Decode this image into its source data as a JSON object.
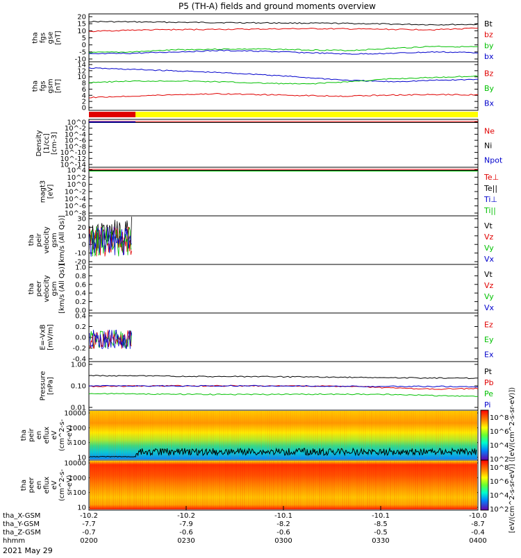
{
  "chart_data": {
    "title": "P5 (TH-A) fields and ground moments overview",
    "date": "2021 May 29",
    "panels": [
      {
        "id": "fgs_gse",
        "type": "line",
        "ylabel": [
          "tha",
          "fgs",
          "gse",
          "[nT]"
        ],
        "yticks": [
          "20",
          "15",
          "10",
          "5",
          "0",
          "-5",
          "-10"
        ],
        "ylim": [
          -10,
          20
        ],
        "legend": [
          {
            "label": "Bt",
            "color": "#000000"
          },
          {
            "label": "bz",
            "color": "#e00000"
          },
          {
            "label": "by",
            "color": "#00c000"
          },
          {
            "label": "bx",
            "color": "#0000cc"
          }
        ],
        "series": [
          {
            "name": "Bt",
            "color": "#000000",
            "values": [
              16.5,
              16.3,
              16.0,
              15.8,
              15.6,
              15.4,
              15.2,
              14.7,
              14.3,
              14.5
            ]
          },
          {
            "name": "bz",
            "color": "#e00000",
            "values": [
              9.5,
              10.5,
              10.8,
              11.0,
              11.2,
              11.5,
              11.3,
              11.0,
              10.8,
              11.8
            ]
          },
          {
            "name": "by",
            "color": "#00c000",
            "values": [
              -5.5,
              -5.0,
              -3.5,
              -3.0,
              -3.0,
              -3.5,
              -4.0,
              -2.5,
              -1.0,
              -1.5
            ]
          },
          {
            "name": "bx",
            "color": "#0000cc",
            "values": [
              -6.5,
              -6.0,
              -5.0,
              -4.0,
              -4.5,
              -5.5,
              -6.5,
              -6.0,
              -5.0,
              -5.5
            ]
          }
        ]
      },
      {
        "id": "fgs_gsm",
        "type": "line",
        "ylabel": [
          "tha",
          "fgs",
          "gsm",
          "[nT]"
        ],
        "yticks": [
          "14",
          "12",
          "10",
          "8",
          "6",
          "4",
          "2",
          "0"
        ],
        "ylim": [
          -1,
          14
        ],
        "legend": [
          {
            "label": "Bz",
            "color": "#e00000"
          },
          {
            "label": "By",
            "color": "#00c000"
          },
          {
            "label": "Bx",
            "color": "#0000cc"
          }
        ],
        "series": [
          {
            "name": "Bx",
            "color": "#0000cc",
            "values": [
              12.8,
              12.3,
              11.8,
              11.2,
              10.5,
              9.5,
              8.5,
              8.0,
              8.5,
              8.8
            ]
          },
          {
            "name": "By",
            "color": "#00c000",
            "values": [
              7.8,
              8.2,
              8.3,
              8.0,
              7.5,
              7.2,
              8.0,
              9.0,
              9.5,
              10.0
            ]
          },
          {
            "name": "Bz",
            "color": "#e00000",
            "values": [
              2.5,
              3.0,
              3.5,
              3.8,
              3.5,
              3.2,
              3.0,
              3.4,
              3.5,
              3.5
            ]
          }
        ]
      },
      {
        "id": "density",
        "type": "line",
        "log": true,
        "ylabel": [
          "Density",
          "[1/cc]",
          "[cm-3]"
        ],
        "yticks": [
          "10^0",
          "10^-2",
          "10^-4",
          "10^-6",
          "10^-8",
          "10^-10",
          "10^-12",
          "10^-14"
        ],
        "legend": [
          {
            "label": "Ne",
            "color": "#e00000"
          },
          {
            "label": "Ni",
            "color": "#000000"
          },
          {
            "label": "Npot",
            "color": "#0000cc"
          }
        ]
      },
      {
        "id": "temp",
        "type": "line",
        "log": true,
        "ylabel": [
          "magt3",
          "[eV]"
        ],
        "yticks": [
          "10^4",
          "10^2",
          "10^0",
          "10^-2",
          "10^-4",
          "10^-6",
          "10^-8"
        ],
        "legend": [
          {
            "label": "Te⊥",
            "color": "#e00000"
          },
          {
            "label": "Te||",
            "color": "#000000"
          },
          {
            "label": "Ti⊥",
            "color": "#0000cc"
          },
          {
            "label": "Ti||",
            "color": "#00c000"
          }
        ]
      },
      {
        "id": "peir_vel",
        "type": "line",
        "ylabel": [
          "tha",
          "peir",
          "velocity",
          "gsm",
          "[km/s (All Qs)]"
        ],
        "yticks": [
          "30",
          "20",
          "10",
          "0",
          "-10",
          "-20"
        ],
        "ylim": [
          -20,
          30
        ],
        "legend": [
          {
            "label": "Vt",
            "color": "#000000"
          },
          {
            "label": "Vz",
            "color": "#e00000"
          },
          {
            "label": "Vy",
            "color": "#00c000"
          },
          {
            "label": "Vx",
            "color": "#0000cc"
          }
        ]
      },
      {
        "id": "peer_vel",
        "type": "line",
        "ylabel": [
          "tha",
          "peer",
          "velocity",
          "gsm",
          "[km/s (All Qs)]"
        ],
        "yticks": [
          "1.0",
          "0.8",
          "0.6",
          "0.4",
          "0.2",
          "0.0"
        ],
        "ylim": [
          0,
          1
        ],
        "legend": [
          {
            "label": "Vt",
            "color": "#000000"
          },
          {
            "label": "Vz",
            "color": "#e00000"
          },
          {
            "label": "Vy",
            "color": "#00c000"
          },
          {
            "label": "Vx",
            "color": "#0000cc"
          }
        ]
      },
      {
        "id": "efield",
        "type": "line",
        "ylabel": [
          "E=-VxB",
          "[mV/m]"
        ],
        "yticks": [
          "0.4",
          "0.2",
          "0.0",
          "-0.2",
          "-0.4"
        ],
        "ylim": [
          -0.4,
          0.4
        ],
        "legend": [
          {
            "label": "Ez",
            "color": "#e00000"
          },
          {
            "label": "Ey",
            "color": "#00c000"
          },
          {
            "label": "Ex",
            "color": "#0000cc"
          }
        ]
      },
      {
        "id": "pressure",
        "type": "line",
        "log": true,
        "ylabel": [
          "Pressure",
          "[nPa]"
        ],
        "yticks": [
          "1.00",
          "0.10",
          "0.01"
        ],
        "legend": [
          {
            "label": "Pt",
            "color": "#000000"
          },
          {
            "label": "Pb",
            "color": "#e00000"
          },
          {
            "label": "Pe",
            "color": "#00c000"
          },
          {
            "label": "Pi",
            "color": "#0000cc"
          }
        ],
        "series": [
          {
            "name": "Pt",
            "color": "#000000",
            "values": [
              0.3,
              0.29,
              0.28,
              0.27,
              0.27,
              0.26,
              0.25,
              0.24,
              0.23,
              0.23
            ]
          },
          {
            "name": "Pb",
            "color": "#e00000",
            "values": [
              0.095,
              0.098,
              0.1,
              0.1,
              0.1,
              0.1,
              0.095,
              0.08,
              0.07,
              0.075
            ]
          },
          {
            "name": "Pi",
            "color": "#0000cc",
            "values": [
              0.1,
              0.1,
              0.1,
              0.1,
              0.1,
              0.1,
              0.095,
              0.095,
              0.095,
              0.09
            ]
          },
          {
            "name": "Pe",
            "color": "#00c000",
            "values": [
              0.045,
              0.042,
              0.041,
              0.04,
              0.04,
              0.041,
              0.041,
              0.04,
              0.035,
              0.032
            ]
          }
        ]
      },
      {
        "id": "peir_en",
        "type": "heatmap",
        "ylabel": [
          "tha",
          "peir",
          "en",
          "eflux",
          "eV",
          "(cm^2-s-",
          "sr-eV)"
        ],
        "yticks": [
          "10000",
          "1000",
          "100",
          "10"
        ]
      },
      {
        "id": "peer_en",
        "type": "heatmap",
        "ylabel": [
          "tha",
          "peer",
          "en",
          "eflux",
          "eV",
          "(cm^2-s-",
          "sr-eV)"
        ],
        "yticks": [
          "10000",
          "1000",
          "100",
          "10"
        ]
      }
    ],
    "colorbar": {
      "label": "[eV/(cm^2-s-sr-eV)] ([eV/(cm^2-s-sr-eV)])",
      "ticks_top": [
        "10^8",
        "10^6",
        "10^4",
        "10^2"
      ],
      "ticks_bottom": [
        "10^8",
        "10^6",
        "10^4",
        "10^2"
      ]
    },
    "xaxis": {
      "rows": [
        {
          "label": "tha_X-GSM",
          "values": [
            "-10.2",
            "-10.2",
            "-10.1",
            "-10.1",
            "-10.0"
          ]
        },
        {
          "label": "tha_Y-GSM",
          "values": [
            "-7.7",
            "-7.9",
            "-8.2",
            "-8.5",
            "-8.7"
          ]
        },
        {
          "label": "tha_Z-GSM",
          "values": [
            "-0.7",
            "-0.6",
            "-0.6",
            "-0.5",
            "-0.4"
          ]
        },
        {
          "label": "hhmm",
          "values": [
            "0200",
            "0230",
            "0300",
            "0330",
            "0400"
          ]
        }
      ]
    }
  }
}
